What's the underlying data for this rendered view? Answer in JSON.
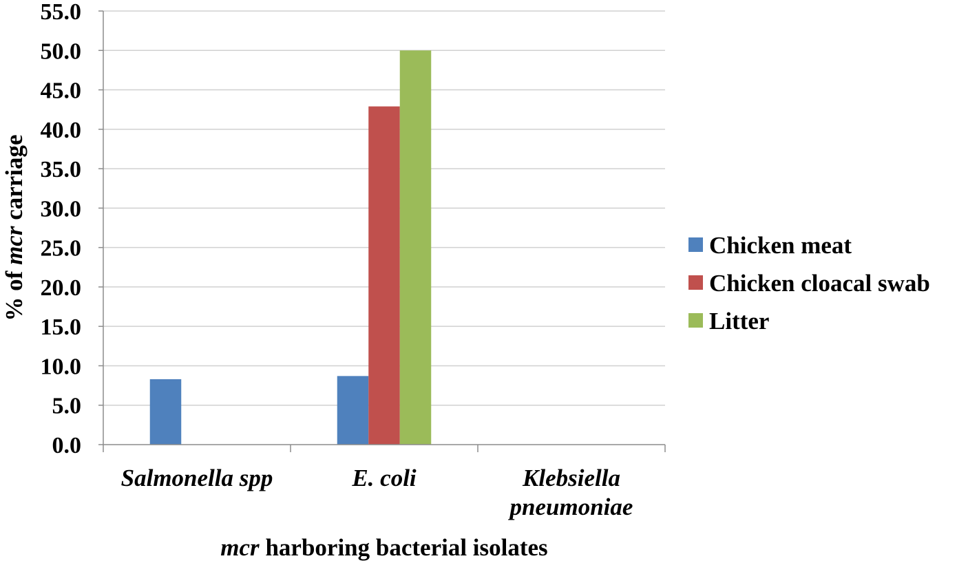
{
  "chart_data": {
    "type": "bar",
    "categories": [
      [
        "Salmonella spp"
      ],
      [
        "E. coli"
      ],
      [
        "Klebsiella",
        "pneumoniae"
      ]
    ],
    "series": [
      {
        "name": "Chicken meat",
        "color": "#4f81bd",
        "values": [
          8.3,
          8.7,
          0.0
        ]
      },
      {
        "name": "Chicken cloacal swab",
        "color": "#c0504d",
        "values": [
          0.0,
          42.9,
          0.0
        ]
      },
      {
        "name": "Litter",
        "color": "#9bbb59",
        "values": [
          0.0,
          50.0,
          0.0
        ]
      }
    ],
    "ylim": [
      0,
      55
    ],
    "yticks": [
      "0.0",
      "5.0",
      "10.0",
      "15.0",
      "20.0",
      "25.0",
      "30.0",
      "35.0",
      "40.0",
      "45.0",
      "50.0",
      "55.0"
    ],
    "ylabel": {
      "prefix": "% of ",
      "italic": "mcr",
      "suffix": " carriage"
    },
    "xlabel": {
      "italic": "mcr",
      "suffix": " harboring bacterial isolates"
    },
    "grid": true,
    "legend_position": "right"
  }
}
